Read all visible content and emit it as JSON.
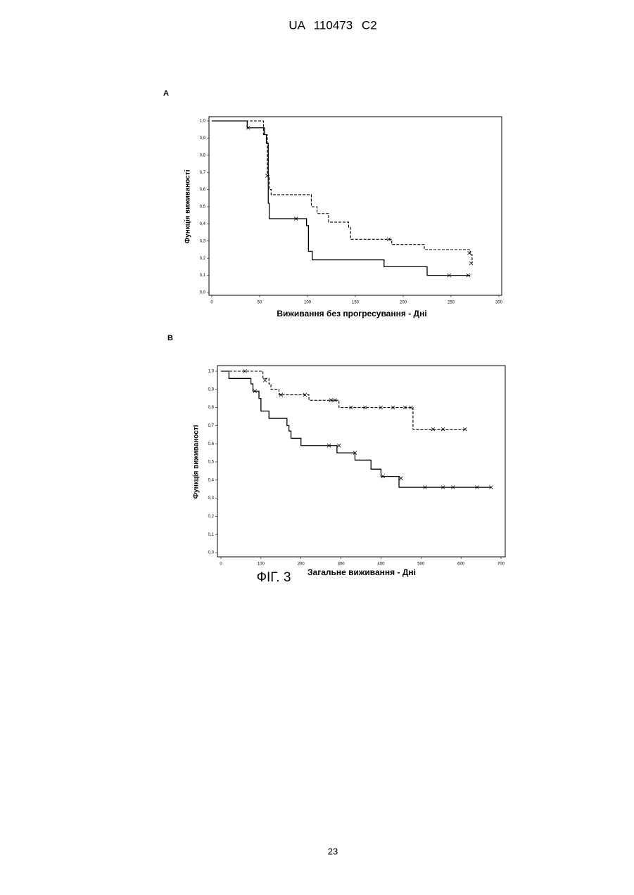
{
  "header": "UA 110473 C2",
  "figure_label": "ФІГ. 3",
  "page_number": "23",
  "chart_data": [
    {
      "type": "step",
      "panel": "A",
      "xlabel": "Виживання без прогресування - Дні",
      "ylabel": "Функція виживаності",
      "xlim": [
        0,
        300
      ],
      "ylim": [
        0,
        1
      ],
      "xticks": [
        0,
        50,
        100,
        150,
        200,
        250,
        300
      ],
      "yticks": [
        {
          "value": 0,
          "label": "0,0"
        },
        {
          "value": 0.1,
          "label": "0,1"
        },
        {
          "value": 0.2,
          "label": "0,2"
        },
        {
          "value": 0.3,
          "label": "0,3"
        },
        {
          "value": 0.4,
          "label": "0,4"
        },
        {
          "value": 0.5,
          "label": "0,5"
        },
        {
          "value": 0.6,
          "label": "0,6"
        },
        {
          "value": 0.7,
          "label": "0,7"
        },
        {
          "value": 0.8,
          "label": "0,8"
        },
        {
          "value": 0.9,
          "label": "0,9"
        },
        {
          "value": 1,
          "label": "1,0"
        }
      ],
      "series": [
        {
          "color": "#000000",
          "dash": false,
          "x": [
            0,
            37,
            55,
            57,
            59,
            60,
            99,
            101,
            105,
            180,
            225,
            270
          ],
          "values": [
            1,
            0.96,
            0.92,
            0.87,
            0.52,
            0.43,
            0.39,
            0.24,
            0.19,
            0.15,
            0.1,
            0.1
          ],
          "censored": {
            "x": [
              38,
              88,
              248,
              268
            ],
            "values": [
              0.96,
              0.43,
              0.1,
              0.1
            ]
          }
        },
        {
          "color": "#000000",
          "dash": true,
          "x": [
            0,
            54,
            58,
            60,
            62,
            104,
            110,
            122,
            143,
            145,
            188,
            222,
            270,
            272
          ],
          "values": [
            1,
            0.92,
            0.68,
            0.6,
            0.57,
            0.5,
            0.46,
            0.41,
            0.38,
            0.31,
            0.28,
            0.25,
            0.22,
            0.17
          ],
          "censored": {
            "x": [
              58,
              185,
              269,
              271
            ],
            "values": [
              0.68,
              0.31,
              0.23,
              0.17
            ]
          }
        }
      ]
    },
    {
      "type": "step",
      "panel": "B",
      "xlabel": "Загальне виживання - Дні",
      "ylabel": "Функція виживаності",
      "xlim": [
        0,
        700
      ],
      "ylim": [
        0,
        1
      ],
      "xticks": [
        0,
        100,
        200,
        300,
        400,
        500,
        600,
        700
      ],
      "yticks": [
        {
          "value": 0,
          "label": "0,0"
        },
        {
          "value": 0.1,
          "label": "0,1"
        },
        {
          "value": 0.2,
          "label": "0,2"
        },
        {
          "value": 0.3,
          "label": "0,3"
        },
        {
          "value": 0.4,
          "label": "0,4"
        },
        {
          "value": 0.5,
          "label": "0,5"
        },
        {
          "value": 0.6,
          "label": "0,6"
        },
        {
          "value": 0.7,
          "label": "0,7"
        },
        {
          "value": 0.8,
          "label": "0,8"
        },
        {
          "value": 0.9,
          "label": "0,9"
        },
        {
          "value": 1,
          "label": "1,0"
        }
      ],
      "series": [
        {
          "color": "#000000",
          "dash": false,
          "x": [
            0,
            20,
            75,
            80,
            95,
            100,
            120,
            165,
            170,
            175,
            200,
            290,
            335,
            375,
            400,
            445,
            675
          ],
          "values": [
            1,
            0.96,
            0.93,
            0.89,
            0.85,
            0.78,
            0.74,
            0.7,
            0.67,
            0.63,
            0.59,
            0.55,
            0.51,
            0.46,
            0.42,
            0.36,
            0.36
          ],
          "censored": {
            "x": [
              85,
              270,
              295,
              335,
              405,
              450,
              510,
              555,
              580,
              640,
              675
            ],
            "values": [
              0.89,
              0.59,
              0.59,
              0.55,
              0.42,
              0.41,
              0.36,
              0.36,
              0.36,
              0.36,
              0.36
            ]
          }
        },
        {
          "color": "#000000",
          "dash": true,
          "x": [
            0,
            105,
            120,
            125,
            145,
            220,
            295,
            480,
            615
          ],
          "values": [
            1,
            0.96,
            0.93,
            0.9,
            0.87,
            0.84,
            0.8,
            0.68,
            0.68
          ],
          "censored": {
            "x": [
              60,
              110,
              150,
              210,
              275,
              285,
              325,
              360,
              400,
              430,
              460,
              475,
              530,
              555,
              610
            ],
            "values": [
              1,
              0.95,
              0.87,
              0.87,
              0.84,
              0.84,
              0.8,
              0.8,
              0.8,
              0.8,
              0.8,
              0.8,
              0.68,
              0.68,
              0.68
            ]
          }
        }
      ]
    }
  ]
}
